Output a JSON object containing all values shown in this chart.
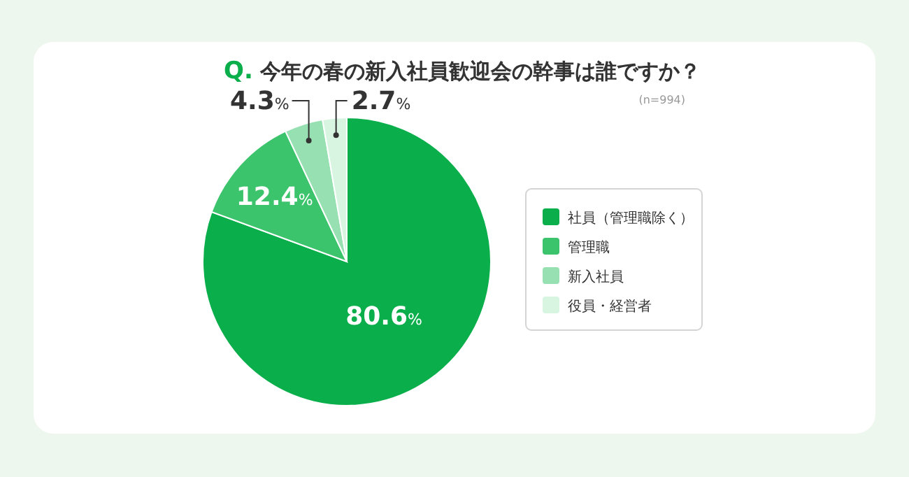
{
  "chart_data": {
    "type": "pie",
    "title": "Q. 今年の春の新入社員歓迎会の幹事は誰ですか？",
    "subtitle": "(n=994)",
    "categories": [
      "社員（管理職除く）",
      "管理職",
      "新入社員",
      "役員・経営者"
    ],
    "values": [
      80.6,
      12.4,
      4.3,
      2.7
    ],
    "colors": [
      "#0aaf4b",
      "#3cc46c",
      "#97e0b1",
      "#d8f5e2"
    ],
    "value_labels": [
      "80.6%",
      "12.4%",
      "4.3%",
      "2.7%"
    ],
    "legend": "right"
  }
}
